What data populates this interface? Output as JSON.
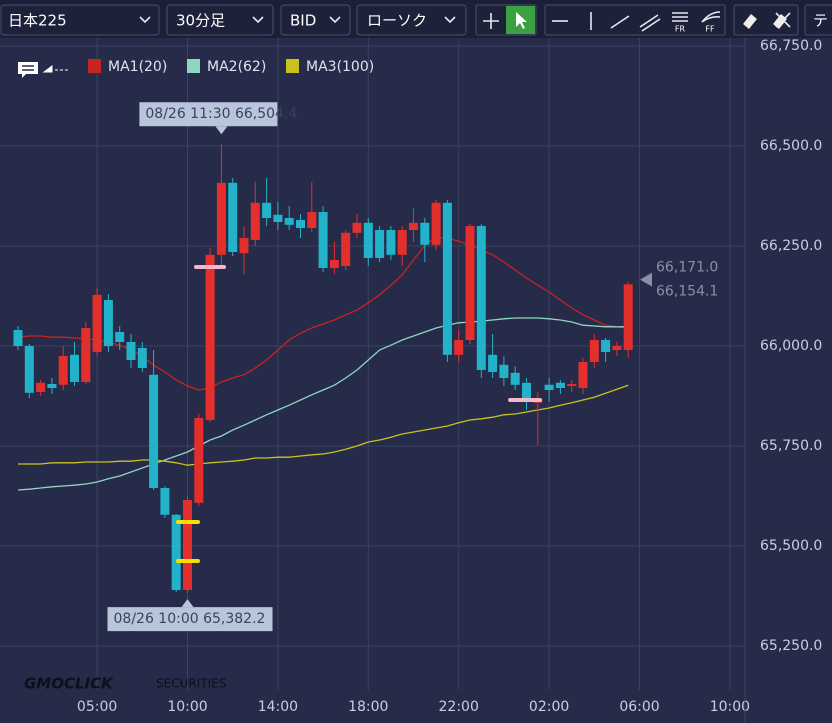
{
  "toolbar": {
    "symbol": "日本225",
    "interval": "30分足",
    "side": "BID",
    "chart_style": "ローソク",
    "icon_fr": "FR",
    "icon_ff": "FF",
    "cut_label": "テ"
  },
  "chart_data": {
    "type": "candlestick",
    "categories": [
      null,
      null,
      null,
      null,
      null,
      null,
      null,
      "05:00",
      null,
      null,
      null,
      null,
      null,
      null,
      null,
      "10:00",
      null,
      null,
      null,
      null,
      null,
      null,
      null,
      "14:00",
      null,
      null,
      null,
      null,
      null,
      null,
      null,
      "18:00",
      null,
      null,
      null,
      null,
      null,
      null,
      null,
      "22:00",
      null,
      null,
      null,
      null,
      null,
      null,
      null,
      "02:00",
      null,
      null,
      null,
      null,
      null,
      null,
      null,
      "06:00",
      null,
      null,
      null,
      null,
      null,
      null,
      null,
      "10:00"
    ],
    "open": [
      66040,
      66000,
      65885,
      65905,
      65903,
      65978,
      65910,
      65985,
      66115,
      66035,
      66010,
      65995,
      65928,
      65645,
      65578,
      65390,
      65608,
      65815,
      66228,
      66408,
      66232,
      66265,
      66358,
      66328,
      66320,
      66315,
      66295,
      66335,
      66195,
      66200,
      66283,
      66308,
      66290,
      66290,
      66228,
      66290,
      66308,
      66253,
      66358,
      65978,
      66015,
      66300,
      65978,
      65953,
      65933,
      65908,
      65858,
      65903,
      65908,
      65900,
      65895,
      65960,
      66015,
      65990,
      65990,
      null,
      null,
      null,
      null,
      null,
      null,
      null,
      null,
      null
    ],
    "high": [
      66050,
      66005,
      65915,
      65920,
      66000,
      66010,
      66060,
      66145,
      66130,
      66050,
      66030,
      66010,
      65990,
      65650,
      65580,
      65625,
      65830,
      66245,
      66504.4,
      66420,
      66300,
      66410,
      66420,
      66360,
      66350,
      66330,
      66410,
      66350,
      66260,
      66290,
      66330,
      66320,
      66300,
      66300,
      66300,
      66345,
      66320,
      66365,
      66365,
      66040,
      66305,
      66305,
      66030,
      65975,
      65950,
      65920,
      65885,
      65920,
      65915,
      65915,
      65970,
      66030,
      66020,
      66010,
      66160,
      null,
      null,
      null,
      null,
      null,
      null,
      null,
      null,
      null
    ],
    "low": [
      65990,
      65870,
      65875,
      65880,
      65890,
      65900,
      65905,
      65975,
      65985,
      65990,
      65945,
      65935,
      65640,
      65570,
      65385,
      65382.2,
      65600,
      65810,
      66200,
      66225,
      66180,
      66250,
      66300,
      66290,
      66290,
      66270,
      66285,
      66185,
      66180,
      66190,
      66270,
      66200,
      66210,
      66215,
      66200,
      66260,
      66210,
      66240,
      65960,
      65960,
      66005,
      65920,
      65920,
      65900,
      65890,
      65840,
      65752,
      65860,
      65880,
      65885,
      65880,
      65945,
      65960,
      65975,
      65970,
      null,
      null,
      null,
      null,
      null,
      null,
      null,
      null,
      null
    ],
    "close": [
      66000,
      65883,
      65908,
      65895,
      65975,
      65910,
      66045,
      66128,
      66000,
      66010,
      65965,
      65945,
      65645,
      65578,
      65390,
      65615,
      65820,
      66228,
      66408,
      66235,
      66270,
      66358,
      66320,
      66310,
      66303,
      66295,
      66335,
      66195,
      66215,
      66283,
      66308,
      66220,
      66220,
      66228,
      66290,
      66308,
      66253,
      66358,
      65978,
      66015,
      66300,
      65940,
      65935,
      65920,
      65903,
      65870,
      65868,
      65890,
      65895,
      65905,
      65960,
      66015,
      65985,
      66000,
      66154.1,
      null,
      null,
      null,
      null,
      null,
      null,
      null,
      null,
      null
    ],
    "up_color": "#e3302c",
    "down_color": "#22b3ca",
    "series": [
      {
        "name": "MA1(20)",
        "color": "#c8241f",
        "values": [
          66022,
          66025,
          66025,
          66022,
          66022,
          66020,
          66018,
          66015,
          66010,
          66002,
          65990,
          65975,
          65952,
          65935,
          65915,
          65900,
          65890,
          65895,
          65910,
          65920,
          65928,
          65945,
          65965,
          65990,
          66015,
          66032,
          66045,
          66055,
          66065,
          66078,
          66090,
          66108,
          66128,
          66152,
          66178,
          66215,
          66252,
          66272,
          66270,
          66262,
          66252,
          66240,
          66228,
          66210,
          66190,
          66170,
          66152,
          66135,
          66115,
          66095,
          66078,
          66065,
          66052,
          66048,
          66045,
          null,
          null,
          null,
          null,
          null,
          null,
          null,
          null,
          null
        ]
      },
      {
        "name": "MA2(62)",
        "color": "#8fd6c2",
        "values": [
          65640,
          65642,
          65645,
          65648,
          65650,
          65652,
          65655,
          65660,
          65668,
          65675,
          65685,
          65695,
          65705,
          65715,
          65725,
          65735,
          65750,
          65765,
          65775,
          65790,
          65802,
          65815,
          65828,
          65840,
          65852,
          65865,
          65878,
          65890,
          65902,
          65920,
          65940,
          65965,
          65990,
          66002,
          66015,
          66025,
          66035,
          66045,
          66052,
          66058,
          66060,
          66062,
          66065,
          66068,
          66070,
          66070,
          66070,
          66068,
          66065,
          66060,
          66052,
          66050,
          66048,
          66048,
          66048,
          null,
          null,
          null,
          null,
          null,
          null,
          null,
          null,
          null
        ]
      },
      {
        "name": "MA3(100)",
        "color": "#c9c21e",
        "values": [
          65705,
          65705,
          65705,
          65708,
          65708,
          65708,
          65710,
          65710,
          65710,
          65712,
          65712,
          65715,
          65715,
          65712,
          65708,
          65702,
          65705,
          65708,
          65710,
          65712,
          65715,
          65720,
          65720,
          65722,
          65722,
          65725,
          65728,
          65730,
          65735,
          65742,
          65750,
          65760,
          65765,
          65772,
          65780,
          65785,
          65790,
          65795,
          65800,
          65808,
          65815,
          65818,
          65822,
          65828,
          65830,
          65835,
          65840,
          65845,
          65852,
          65858,
          65865,
          65872,
          65882,
          65892,
          65902,
          null,
          null,
          null,
          null,
          null,
          null,
          null,
          null,
          null
        ]
      }
    ],
    "ylim": [
      65140,
      66770
    ],
    "yticks": [
      {
        "value": 65250,
        "label": "65,250.0"
      },
      {
        "value": 65500,
        "label": "65,500.0"
      },
      {
        "value": 65750,
        "label": "65,750.0"
      },
      {
        "value": 66000,
        "label": "66,000.0"
      },
      {
        "value": 66250,
        "label": "66,250.0"
      },
      {
        "value": 66500,
        "label": "66,500.0"
      },
      {
        "value": 66750,
        "label": "66,750.0"
      }
    ],
    "grid": true,
    "annotations": [
      {
        "text": "08/26 11:30 66,504.4",
        "value": 66504.4
      },
      {
        "text": "08/26 10:00 65,382.2",
        "value": 65382.2
      }
    ],
    "price_labels": [
      {
        "value": 66171.0,
        "label": "66,171.0"
      },
      {
        "value": 66154.1,
        "label": "66,154.1"
      }
    ]
  },
  "logo": {
    "name": "GMOCLICK",
    "sub": "SECURITIES"
  }
}
